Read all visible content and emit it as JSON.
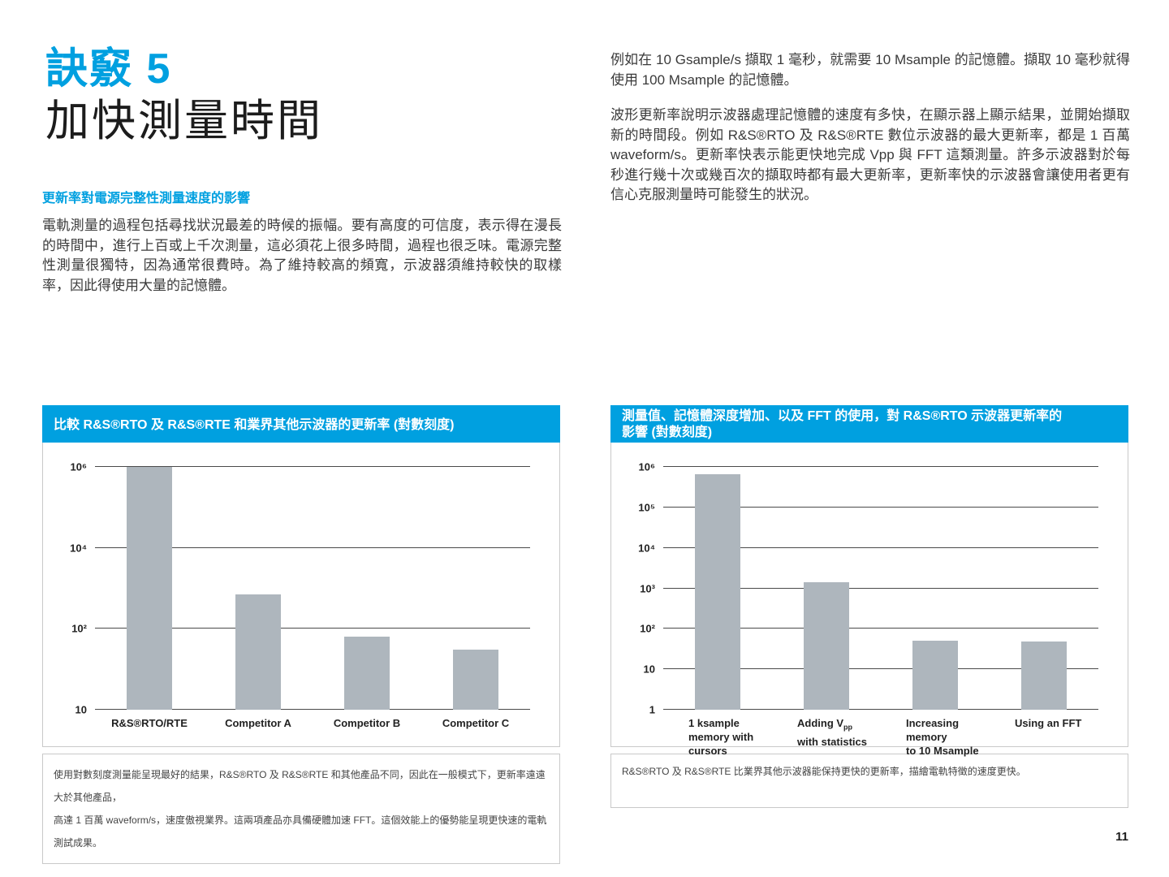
{
  "page": {
    "number": "11"
  },
  "header": {
    "kicker": "訣竅 5",
    "title": "加快測量時間"
  },
  "left_column": {
    "subheading": "更新率對電源完整性測量速度的影響",
    "body": "電軌測量的過程包括尋找狀況最差的時候的振幅。要有高度的可信度，表示得在漫長的時間中，進行上百或上千次測量，這必須花上很多時間，過程也很乏味。電源完整性測量很獨特，因為通常很費時。為了維持較高的頻寬，示波器須維持較快的取樣率，因此得使用大量的記憶體。"
  },
  "right_column": {
    "para1": "例如在 10 Gsample/s 擷取 1 毫秒，就需要 10 Msample 的記憶體。擷取 10 毫秒就得使用 100 Msample 的記憶體。",
    "para2": "波形更新率說明示波器處理記憶體的速度有多快，在顯示器上顯示結果，並開始擷取新的時間段。例如 R&S®RTO 及 R&S®RTE 數位示波器的最大更新率，都是 1 百萬 waveform/s。更新率快表示能更快地完成 Vpp 與 FFT 這類測量。許多示波器對於每秒進行幾十次或幾百次的擷取時都有最大更新率，更新率快的示波器會讓使用者更有信心克服測量時可能發生的狀況。"
  },
  "colors": {
    "accent_blue": "#00a0e0",
    "bar_gray": "#aeb6bd",
    "gridline": "#4a4a4a"
  },
  "chart_data": [
    {
      "type": "bar",
      "title": "比較 R&S®RTO 及 R&S®RTE 和業界其他示波器的更新率 (對數刻度)",
      "categories": [
        "R&S®RTO/RTE",
        "Competitor A",
        "Competitor B",
        "Competitor C"
      ],
      "values": [
        1000000,
        700,
        80,
        55
      ],
      "scale": "log",
      "grid": true,
      "legend": false,
      "yticks": [
        {
          "label": "10",
          "exp": 1
        },
        {
          "label": "10²",
          "exp": 2
        },
        {
          "label": "10⁴",
          "exp": 4
        },
        {
          "label": "10⁶",
          "exp": 6
        }
      ],
      "caption": "使用對數刻度測量能呈現最好的結果，R&S®RTO 及 R&S®RTE 和其他產品不同，因此在一般模式下，更新率遠遠大於其他產品，\n高達 1 百萬 waveform/s，速度傲視業界。這兩項產品亦具備硬體加速 FFT。這個效能上的優勢能呈現更快速的電軌測試成果。"
    },
    {
      "type": "bar",
      "title": "測量值、記憶體深度增加、以及 FFT 的使用，對 R&S®RTO 示波器更新率的\n影響 (對數刻度)",
      "categories": [
        "1 ksample\nmemory with cursors",
        "Adding V~pp~\nwith statistics",
        "Increasing memory\nto 10 Msample",
        "Using an FFT"
      ],
      "values": [
        650000,
        1400,
        50,
        48
      ],
      "scale": "log",
      "grid": true,
      "legend": false,
      "yticks": [
        {
          "label": "1",
          "exp": 0
        },
        {
          "label": "10",
          "exp": 1
        },
        {
          "label": "10²",
          "exp": 2
        },
        {
          "label": "10³",
          "exp": 3
        },
        {
          "label": "10⁴",
          "exp": 4
        },
        {
          "label": "10⁵",
          "exp": 5
        },
        {
          "label": "10⁶",
          "exp": 6
        }
      ],
      "caption": "R&S®RTO 及 R&S®RTE 比業界其他示波器能保持更快的更新率，描繪電軌特徵的速度更快。"
    }
  ]
}
